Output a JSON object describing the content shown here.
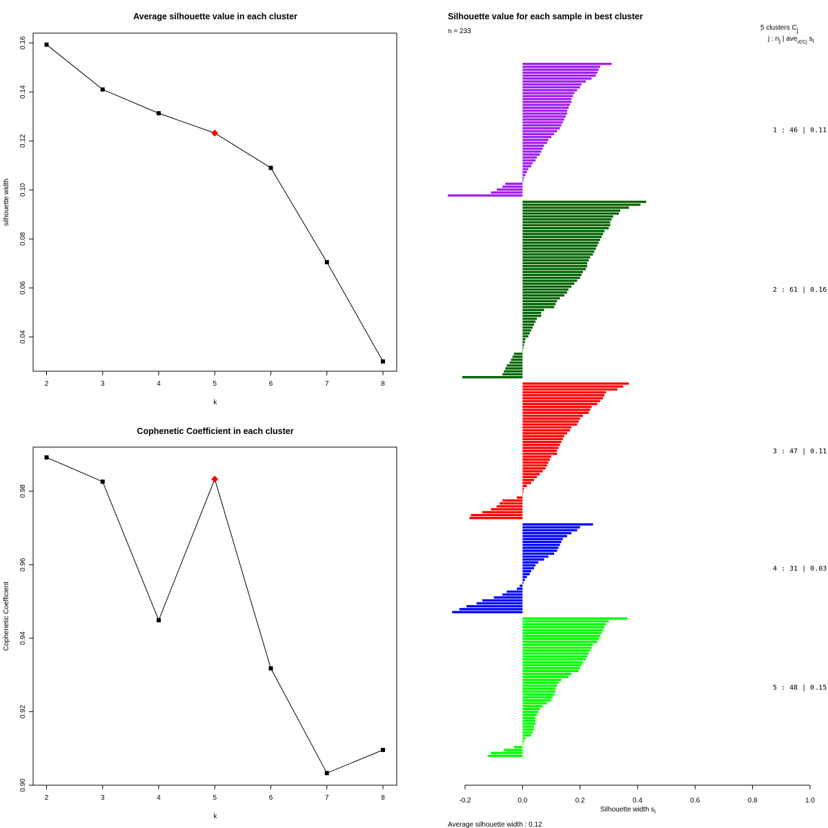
{
  "chart_data": [
    {
      "type": "line",
      "title": "Average silhouette value in each cluster",
      "xlabel": "k",
      "ylabel": "silhouette width",
      "x": [
        2,
        3,
        4,
        5,
        6,
        7,
        8
      ],
      "y": [
        0.1593,
        0.141,
        0.1313,
        0.1232,
        0.109,
        0.0705,
        0.03
      ],
      "highlight_k": 5,
      "xlim": [
        2,
        8
      ],
      "ylim": [
        0.026,
        0.164
      ],
      "yticks": [
        0.04,
        0.06,
        0.08,
        0.1,
        0.12,
        0.14,
        0.16
      ],
      "ytick_labels": [
        "0.04",
        "0.06",
        "0.08",
        "0.10",
        "0.12",
        "0.14",
        "0.16"
      ],
      "xticks": [
        2,
        3,
        4,
        5,
        6,
        7,
        8
      ],
      "xtick_labels": [
        "2",
        "3",
        "4",
        "5",
        "6",
        "7",
        "8"
      ]
    },
    {
      "type": "line",
      "title": "Cophenetic Coefficient in each cluster",
      "xlabel": "k",
      "ylabel": "Cophenetic Coefficient",
      "x": [
        2,
        3,
        4,
        5,
        6,
        7,
        8
      ],
      "y": [
        0.9892,
        0.9826,
        0.9449,
        0.9833,
        0.9318,
        0.9033,
        0.9096
      ],
      "highlight_k": 5,
      "xlim": [
        2,
        8
      ],
      "ylim": [
        0.9,
        0.992
      ],
      "yticks": [
        0.9,
        0.92,
        0.94,
        0.96,
        0.98
      ],
      "ytick_labels": [
        "0.90",
        "0.92",
        "0.94",
        "0.96",
        "0.98"
      ],
      "xticks": [
        2,
        3,
        4,
        5,
        6,
        7,
        8
      ],
      "xtick_labels": [
        "2",
        "3",
        "4",
        "5",
        "6",
        "7",
        "8"
      ]
    },
    {
      "type": "bar",
      "orientation": "horizontal",
      "title": "Silhouette value for each sample in best cluster",
      "n_label": "n = 233",
      "xlabel": "Silhouette width s",
      "xlabel_sub": "i",
      "xlim": [
        -0.2,
        1.0
      ],
      "xticks": [
        -0.2,
        0.0,
        0.2,
        0.4,
        0.6,
        0.8,
        1.0
      ],
      "xtick_labels": [
        "-0.2",
        "0.0",
        "0.2",
        "0.4",
        "0.6",
        "0.8",
        "1.0"
      ],
      "header": {
        "line1": "5  clusters  C",
        "line1_sub": "j",
        "line2": "j :  n",
        "line2_sub": "j",
        "line2_mid": " | ave",
        "line2_sub2": "i∈Cj",
        "line2_end": " s",
        "line2_sub3": "i"
      },
      "footer": "Average silhouette width :  0.12",
      "clusters": [
        {
          "id": 1,
          "n": 46,
          "avg": 0.11,
          "label": "1 :  46  |  0.11",
          "color": "#a020f0",
          "values": [
            0.31,
            0.27,
            0.265,
            0.26,
            0.255,
            0.24,
            0.22,
            0.205,
            0.2,
            0.19,
            0.18,
            0.175,
            0.17,
            0.17,
            0.165,
            0.16,
            0.155,
            0.155,
            0.15,
            0.145,
            0.14,
            0.135,
            0.13,
            0.12,
            0.11,
            0.1,
            0.09,
            0.085,
            0.075,
            0.07,
            0.065,
            0.06,
            0.05,
            0.045,
            0.035,
            0.03,
            0.02,
            0.015,
            0.01,
            0.005,
            0.003,
            -0.06,
            -0.07,
            -0.09,
            -0.11,
            -0.26
          ]
        },
        {
          "id": 2,
          "n": 61,
          "avg": 0.16,
          "label": "2 :  61  |  0.16",
          "color": "#006400",
          "values": [
            0.43,
            0.41,
            0.37,
            0.34,
            0.335,
            0.315,
            0.31,
            0.305,
            0.305,
            0.3,
            0.285,
            0.28,
            0.275,
            0.27,
            0.265,
            0.26,
            0.255,
            0.25,
            0.245,
            0.235,
            0.23,
            0.225,
            0.225,
            0.22,
            0.21,
            0.205,
            0.2,
            0.19,
            0.18,
            0.17,
            0.16,
            0.155,
            0.145,
            0.13,
            0.12,
            0.115,
            0.11,
            0.075,
            0.065,
            0.065,
            0.05,
            0.045,
            0.04,
            0.035,
            0.03,
            0.025,
            0.02,
            0.01,
            0.008,
            0.005,
            0.003,
            0.001,
            -0.03,
            -0.035,
            -0.04,
            -0.045,
            -0.055,
            -0.06,
            -0.065,
            -0.07,
            -0.21
          ]
        },
        {
          "id": 3,
          "n": 47,
          "avg": 0.11,
          "label": "3 :  47  |  0.11",
          "color": "#ff0000",
          "values": [
            0.37,
            0.35,
            0.33,
            0.29,
            0.285,
            0.28,
            0.27,
            0.26,
            0.24,
            0.235,
            0.23,
            0.21,
            0.2,
            0.195,
            0.19,
            0.17,
            0.165,
            0.155,
            0.145,
            0.14,
            0.135,
            0.13,
            0.125,
            0.12,
            0.12,
            0.1,
            0.095,
            0.09,
            0.085,
            0.08,
            0.07,
            0.06,
            0.05,
            0.04,
            0.03,
            0.015,
            0.005,
            0.003,
            0.001,
            -0.02,
            -0.07,
            -0.08,
            -0.09,
            -0.11,
            -0.14,
            -0.18,
            -0.185
          ]
        },
        {
          "id": 4,
          "n": 31,
          "avg": 0.03,
          "label": "4 :  31  |  0.03",
          "color": "#0000ff",
          "values": [
            0.245,
            0.2,
            0.19,
            0.17,
            0.155,
            0.14,
            0.135,
            0.13,
            0.125,
            0.12,
            0.11,
            0.09,
            0.075,
            0.055,
            0.045,
            0.04,
            0.03,
            0.025,
            0.015,
            0.008,
            0.003,
            -0.01,
            -0.02,
            -0.055,
            -0.07,
            -0.1,
            -0.14,
            -0.16,
            -0.195,
            -0.22,
            -0.245
          ]
        },
        {
          "id": 5,
          "n": 48,
          "avg": 0.15,
          "label": "5 :  48  |  0.15",
          "color": "#00ff00",
          "values": [
            0.365,
            0.3,
            0.29,
            0.285,
            0.28,
            0.275,
            0.27,
            0.265,
            0.26,
            0.245,
            0.24,
            0.235,
            0.23,
            0.225,
            0.22,
            0.21,
            0.205,
            0.2,
            0.195,
            0.17,
            0.16,
            0.135,
            0.125,
            0.12,
            0.115,
            0.115,
            0.11,
            0.105,
            0.1,
            0.085,
            0.07,
            0.06,
            0.055,
            0.05,
            0.045,
            0.045,
            0.045,
            0.04,
            0.04,
            0.035,
            0.03,
            0.01,
            0.005,
            0.003,
            -0.03,
            -0.065,
            -0.11,
            -0.12
          ]
        }
      ]
    }
  ]
}
